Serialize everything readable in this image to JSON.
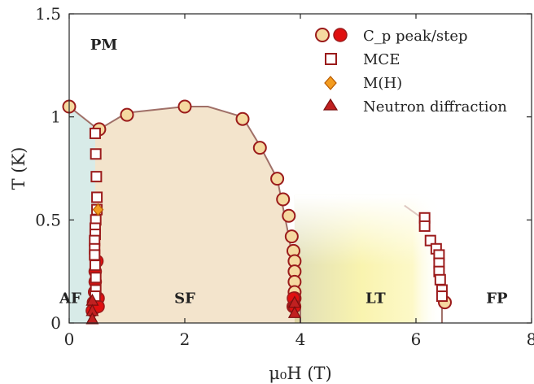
{
  "chart_data": {
    "type": "scatter",
    "xlabel": "μ₀H (T)",
    "ylabel": "T (K)",
    "xlim": [
      0,
      8
    ],
    "ylim": [
      0,
      1.5
    ],
    "xticks": [
      "0",
      "2",
      "4",
      "6",
      "8"
    ],
    "yticks": [
      "0",
      "0.5",
      "1",
      "1.5"
    ],
    "grid": false,
    "legend_position": "top-right",
    "regions": [
      {
        "label": "PM",
        "x": 0.6,
        "y": 1.35
      },
      {
        "label": "AF",
        "x": 0.0,
        "y": 0.12
      },
      {
        "label": "SF",
        "x": 2.0,
        "y": 0.12
      },
      {
        "label": "LT",
        "x": 5.3,
        "y": 0.12
      },
      {
        "label": "FP",
        "x": 7.4,
        "y": 0.12
      }
    ],
    "boundary_line": {
      "x": [
        0.0,
        0.45,
        0.52,
        1.0,
        2.0,
        2.4,
        3.0,
        3.3,
        3.6,
        3.8,
        3.9,
        4.0,
        4.0
      ],
      "y": [
        1.05,
        0.95,
        0.94,
        1.02,
        1.05,
        1.05,
        1.0,
        0.86,
        0.7,
        0.42,
        0.25,
        0.08,
        0.0
      ],
      "color": "#a07068"
    },
    "series": [
      {
        "name": "C_p peak/step",
        "marker": "circle",
        "fill": "#f5d9a0",
        "x": [
          0.0,
          0.52,
          1.0,
          2.0,
          3.0,
          3.3,
          3.6,
          3.7,
          3.8,
          3.85,
          3.88,
          3.9,
          3.9,
          3.9,
          3.9,
          3.9,
          3.88,
          6.5
        ],
        "y": [
          1.05,
          0.94,
          1.01,
          1.05,
          0.99,
          0.85,
          0.7,
          0.6,
          0.52,
          0.42,
          0.35,
          0.3,
          0.25,
          0.2,
          0.15,
          0.12,
          0.08,
          0.1
        ]
      },
      {
        "name": "C_p peak/step (red)",
        "marker": "circle-filled",
        "fill": "#e01010",
        "x": [
          0.4,
          0.42,
          0.44,
          0.45,
          0.45,
          0.48,
          0.5,
          0.5,
          3.88,
          3.9
        ],
        "y": [
          0.06,
          0.1,
          0.15,
          0.2,
          0.25,
          0.3,
          0.12,
          0.08,
          0.12,
          0.08
        ]
      },
      {
        "name": "MCE",
        "marker": "square",
        "fill": "#ffffff",
        "x": [
          0.45,
          0.46,
          0.47,
          0.48,
          0.48,
          0.46,
          0.45,
          0.45,
          0.44,
          0.44,
          0.44,
          0.45,
          0.46,
          0.46,
          0.45,
          6.15,
          6.15,
          6.25,
          6.35,
          6.4,
          6.4,
          6.4,
          6.42,
          6.45,
          6.45
        ],
        "y": [
          0.92,
          0.82,
          0.71,
          0.61,
          0.55,
          0.5,
          0.46,
          0.43,
          0.4,
          0.36,
          0.33,
          0.28,
          0.22,
          0.16,
          0.13,
          0.51,
          0.47,
          0.4,
          0.36,
          0.33,
          0.29,
          0.25,
          0.21,
          0.16,
          0.13
        ]
      },
      {
        "name": "M(H)",
        "marker": "diamond",
        "fill": "#f39c20",
        "x": [
          0.5
        ],
        "y": [
          0.55
        ]
      },
      {
        "name": "Neutron diffraction",
        "marker": "triangle",
        "fill": "#c02020",
        "x": [
          0.4,
          0.4,
          0.4,
          3.9,
          3.9
        ],
        "y": [
          0.11,
          0.06,
          0.02,
          0.1,
          0.05
        ]
      }
    ],
    "legend_labels": [
      "C_p peak/step",
      "MCE",
      "M(H)",
      "Neutron diffraction"
    ],
    "colors": {
      "af_fill": "#d8ebe8",
      "sf_fill": "#f3e4cc",
      "lt_fill": "#f6f07a",
      "edge": "#9b1b1b"
    }
  }
}
